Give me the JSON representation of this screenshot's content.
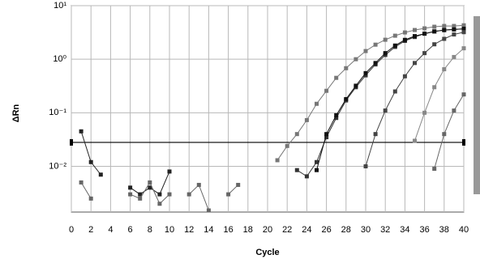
{
  "chart_data": {
    "type": "line",
    "x_label": "Cycle",
    "y_label": "ΔRn",
    "log_y": true,
    "grid": true,
    "xlim": [
      0,
      40
    ],
    "xticks": [
      0,
      2,
      4,
      6,
      8,
      10,
      12,
      14,
      16,
      18,
      20,
      22,
      24,
      26,
      28,
      30,
      32,
      34,
      36,
      38,
      40
    ],
    "ylim": [
      0.0014,
      10
    ],
    "yticks": [
      {
        "value": 10,
        "label": "10¹"
      },
      {
        "value": 1,
        "label": "10⁰"
      },
      {
        "value": 0.1,
        "label": "10⁻¹"
      },
      {
        "value": 0.01,
        "label": "10⁻²"
      }
    ],
    "threshold": 0.028,
    "x": [
      1,
      2,
      3,
      4,
      5,
      6,
      7,
      8,
      9,
      10,
      11,
      12,
      13,
      14,
      15,
      16,
      17,
      18,
      19,
      20,
      21,
      22,
      23,
      24,
      25,
      26,
      27,
      28,
      29,
      30,
      31,
      32,
      33,
      34,
      35,
      36,
      37,
      38,
      39,
      40
    ],
    "series": [
      {
        "color": "#222222",
        "values": [
          0.045,
          0.012,
          0.007,
          null,
          null,
          0.004,
          0.003,
          0.004,
          0.003,
          0.008,
          null,
          null,
          null,
          null,
          null,
          null,
          null,
          null,
          null,
          null,
          null,
          null,
          null,
          null,
          null,
          null,
          null,
          null,
          null,
          null,
          null,
          null,
          null,
          null,
          null,
          null,
          null,
          null,
          null,
          null
        ]
      },
      {
        "color": "#666666",
        "values": [
          0.005,
          0.0025,
          null,
          null,
          null,
          0.003,
          0.0025,
          0.005,
          0.002,
          0.003,
          null,
          0.003,
          0.0045,
          0.0015,
          null,
          0.003,
          0.0045,
          null,
          null,
          null,
          null,
          null,
          null,
          null,
          null,
          null,
          null,
          null,
          null,
          null,
          null,
          null,
          null,
          null,
          null,
          null,
          null,
          null,
          null,
          null
        ]
      },
      {
        "color": "#777777",
        "values": [
          null,
          null,
          null,
          null,
          null,
          null,
          null,
          null,
          null,
          null,
          null,
          null,
          null,
          null,
          null,
          null,
          null,
          null,
          null,
          null,
          0.013,
          0.024,
          0.04,
          0.073,
          0.147,
          0.257,
          0.449,
          0.68,
          1.0,
          1.42,
          1.87,
          2.31,
          2.75,
          3.16,
          3.51,
          3.77,
          4.04,
          4.18,
          4.18,
          4.3
        ]
      },
      {
        "color": "#333333",
        "values": [
          null,
          null,
          null,
          null,
          null,
          null,
          null,
          null,
          null,
          null,
          null,
          null,
          null,
          null,
          null,
          null,
          null,
          null,
          null,
          null,
          null,
          null,
          0.0085,
          0.0065,
          0.012,
          0.035,
          0.08,
          0.17,
          0.3,
          0.5,
          0.8,
          1.2,
          1.7,
          2.2,
          2.6,
          3.0,
          3.3,
          3.5,
          3.6,
          3.7
        ]
      },
      {
        "color": "#111111",
        "values": [
          null,
          null,
          null,
          null,
          null,
          null,
          null,
          null,
          null,
          null,
          null,
          null,
          null,
          null,
          null,
          null,
          null,
          null,
          null,
          null,
          null,
          null,
          null,
          null,
          0.0085,
          0.04,
          0.09,
          0.18,
          0.32,
          0.55,
          0.85,
          1.3,
          1.8,
          2.3,
          2.7,
          3.0,
          3.3,
          3.5,
          3.6,
          3.7
        ]
      },
      {
        "color": "#444444",
        "values": [
          null,
          null,
          null,
          null,
          null,
          null,
          null,
          null,
          null,
          null,
          null,
          null,
          null,
          null,
          null,
          null,
          null,
          null,
          null,
          null,
          null,
          null,
          null,
          null,
          null,
          null,
          null,
          null,
          null,
          0.01,
          0.04,
          0.11,
          0.25,
          0.48,
          0.85,
          1.3,
          1.9,
          2.4,
          2.9,
          3.2
        ]
      },
      {
        "color": "#888888",
        "values": [
          null,
          null,
          null,
          null,
          null,
          null,
          null,
          null,
          null,
          null,
          null,
          null,
          null,
          null,
          null,
          null,
          null,
          null,
          null,
          null,
          null,
          null,
          null,
          null,
          null,
          null,
          null,
          null,
          null,
          null,
          null,
          null,
          null,
          null,
          0.03,
          0.1,
          0.3,
          0.65,
          1.1,
          1.6
        ]
      },
      {
        "color": "#666666",
        "values": [
          null,
          null,
          null,
          null,
          null,
          null,
          null,
          null,
          null,
          null,
          null,
          null,
          null,
          null,
          null,
          null,
          null,
          null,
          null,
          null,
          null,
          null,
          null,
          null,
          null,
          null,
          null,
          null,
          null,
          null,
          null,
          null,
          null,
          null,
          null,
          null,
          0.009,
          0.04,
          0.11,
          0.22
        ]
      }
    ]
  }
}
